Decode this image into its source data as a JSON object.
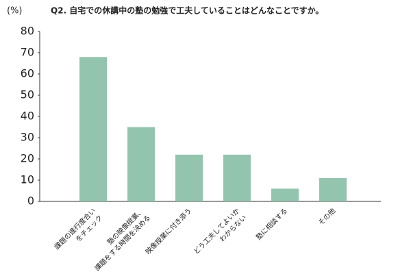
{
  "chart_data": {
    "type": "bar",
    "title": "Q2. 自宅での休講中の塾の勉強で工夫していることはどんなことですか。",
    "y_label": "(%)",
    "categories": [
      [
        "課題の進行度合い",
        "をチェック"
      ],
      [
        "塾の映像授業、",
        "課題をする時間を決める"
      ],
      [
        "映像授業に付き添う"
      ],
      [
        "どう工夫してよいか",
        "わからない"
      ],
      [
        "塾に相談する"
      ],
      [
        "その他"
      ]
    ],
    "values": [
      68,
      35,
      22,
      22,
      6,
      11
    ],
    "color": "#93c4ae",
    "ylim": [
      0,
      80
    ],
    "yticks": [
      0,
      10,
      20,
      30,
      40,
      50,
      60,
      70,
      80
    ],
    "grid": false
  }
}
